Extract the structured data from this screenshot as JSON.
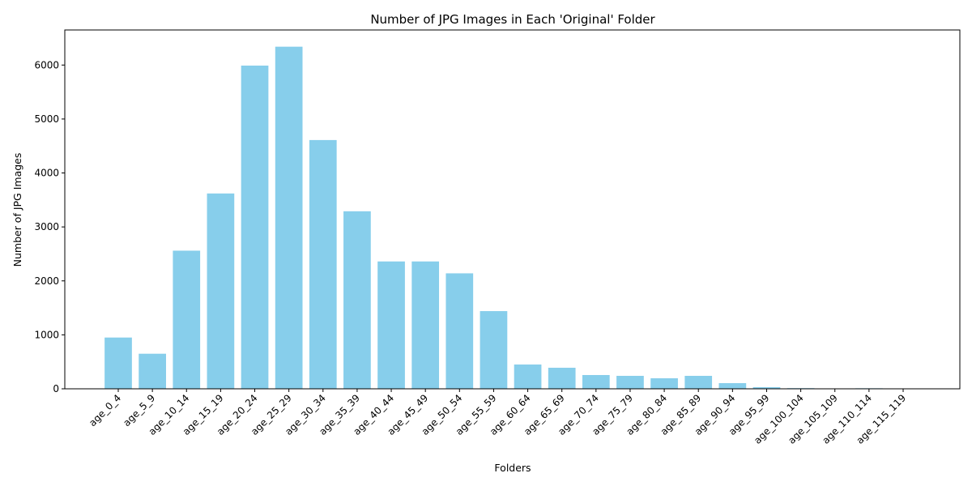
{
  "chart_data": {
    "type": "bar",
    "title": "Number of JPG Images in Each 'Original' Folder",
    "xlabel": "Folders",
    "ylabel": "Number of JPG Images",
    "categories": [
      "age_0_4",
      "age_5_9",
      "age_10_14",
      "age_15_19",
      "age_20_24",
      "age_25_29",
      "age_30_34",
      "age_35_39",
      "age_40_44",
      "age_45_49",
      "age_50_54",
      "age_55_59",
      "age_60_64",
      "age_65_69",
      "age_70_74",
      "age_75_79",
      "age_80_84",
      "age_85_89",
      "age_90_94",
      "age_95_99",
      "age_100_104",
      "age_105_109",
      "age_110_114",
      "age_115_119"
    ],
    "values": [
      950,
      650,
      2560,
      3620,
      5990,
      6340,
      4610,
      3290,
      2360,
      2360,
      2140,
      1440,
      450,
      390,
      255,
      240,
      195,
      240,
      105,
      30,
      12,
      3,
      10,
      2
    ],
    "ylim": [
      0,
      6650
    ],
    "yticks": [
      0,
      1000,
      2000,
      3000,
      4000,
      5000,
      6000
    ],
    "grid": false,
    "bar_color": "#87ceeb"
  }
}
